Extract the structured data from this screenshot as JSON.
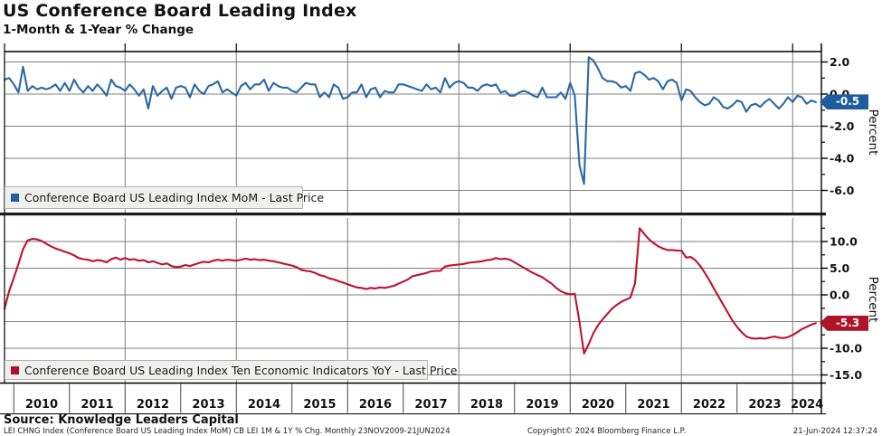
{
  "chart_data": {
    "type": "line",
    "title": "US Conference Board Leading Index",
    "subtitle": "1-Month & 1-Year % Change",
    "grid": "on",
    "legend_position": "inside-bottom-left",
    "x": {
      "frequency": "monthly",
      "start": "2009-11",
      "end": "2024-06",
      "tick_labels": [
        "2010",
        "2011",
        "2012",
        "2013",
        "2014",
        "2015",
        "2016",
        "2017",
        "2018",
        "2019",
        "2020",
        "2021",
        "2022",
        "2023",
        "2024"
      ]
    },
    "panels": [
      {
        "name": "mom",
        "legend": "Conference Board US Leading Index MoM - Last Price",
        "color": "#2A69A5",
        "swatch_color": "#1F5FA3",
        "badge_color": "#1D5C9E",
        "ylabel": "Percent",
        "y_tick_labels": [
          "2.0",
          "0.0",
          "-2.0",
          "-4.0",
          "-6.0"
        ],
        "ylim": [
          -7.1,
          2.65
        ],
        "last_price_label": "-0.5",
        "last_price": -0.5,
        "values": [
          0.9,
          1.0,
          0.6,
          0.1,
          1.7,
          0.2,
          0.5,
          0.3,
          0.4,
          0.3,
          0.4,
          0.6,
          0.2,
          0.7,
          0.2,
          0.9,
          0.4,
          0.1,
          0.5,
          0.2,
          0.6,
          0.3,
          -0.1,
          0.9,
          0.5,
          0.4,
          0.2,
          0.6,
          0.3,
          -0.1,
          0.3,
          -0.9,
          0.5,
          -0.1,
          0.2,
          0.4,
          -0.3,
          0.4,
          0.5,
          0.4,
          -0.2,
          0.6,
          0.2,
          0.0,
          0.5,
          0.6,
          0.8,
          0.1,
          0.3,
          0.1,
          -0.1,
          0.5,
          0.7,
          0.3,
          0.6,
          0.6,
          0.9,
          0.2,
          0.7,
          0.5,
          0.4,
          0.4,
          0.2,
          0.1,
          0.4,
          0.7,
          0.6,
          0.6,
          -0.2,
          0.1,
          -0.2,
          0.6,
          0.4,
          -0.3,
          -0.2,
          0.1,
          0.1,
          0.6,
          -0.2,
          0.3,
          0.4,
          -0.2,
          0.2,
          0.1,
          0.1,
          0.6,
          0.6,
          0.5,
          0.4,
          0.3,
          0.2,
          0.6,
          0.3,
          0.4,
          0.1,
          1.0,
          0.4,
          0.7,
          0.8,
          0.7,
          0.4,
          0.4,
          0.2,
          0.5,
          0.6,
          0.5,
          0.6,
          0.1,
          0.2,
          -0.1,
          -0.1,
          0.1,
          0.2,
          0.1,
          -0.1,
          -0.2,
          0.4,
          -0.2,
          -0.2,
          -0.2,
          0.1,
          -0.3,
          0.7,
          -0.1,
          -4.4,
          -5.6,
          2.3,
          2.1,
          1.6,
          1.0,
          0.8,
          0.8,
          0.7,
          0.4,
          0.5,
          0.2,
          1.3,
          1.4,
          1.2,
          0.9,
          1.0,
          0.8,
          0.3,
          0.8,
          0.9,
          0.7,
          -0.4,
          0.3,
          0.2,
          -0.2,
          -0.5,
          -0.7,
          -0.6,
          -0.2,
          -0.4,
          -0.8,
          -0.9,
          -0.7,
          -0.4,
          -0.5,
          -1.1,
          -0.7,
          -0.6,
          -0.8,
          -0.5,
          -0.3,
          -0.6,
          -0.9,
          -0.6,
          -0.2,
          -0.5,
          -0.1,
          -0.2,
          -0.6,
          -0.4,
          -0.5
        ]
      },
      {
        "name": "yoy",
        "legend": "Conference Board US Leading Index Ten Economic Indicators YoY - Last Price",
        "color": "#BE1230",
        "swatch_color": "#B00E22",
        "badge_color": "#B01226",
        "ylabel": "Percent",
        "y_tick_labels": [
          "10.0",
          "5.0",
          "0.0",
          "-5.0",
          "-10.0",
          "-15.0"
        ],
        "ylim": [
          -16.4,
          14.4
        ],
        "last_price_label": "-5.3",
        "last_price": -5.3,
        "values": [
          -2.6,
          0.7,
          3.2,
          5.8,
          8.6,
          10.2,
          10.5,
          10.4,
          10.1,
          9.6,
          9.1,
          8.7,
          8.4,
          8.1,
          7.8,
          7.4,
          6.9,
          6.7,
          6.6,
          6.3,
          6.5,
          6.4,
          6.1,
          6.7,
          7.0,
          6.6,
          6.9,
          6.6,
          6.7,
          6.4,
          6.5,
          6.1,
          6.3,
          6.0,
          5.7,
          5.9,
          5.4,
          5.2,
          5.3,
          5.6,
          5.4,
          5.7,
          6.0,
          6.2,
          6.1,
          6.4,
          6.6,
          6.4,
          6.6,
          6.5,
          6.4,
          6.6,
          6.8,
          6.6,
          6.7,
          6.5,
          6.6,
          6.4,
          6.3,
          6.1,
          5.9,
          5.7,
          5.5,
          5.2,
          4.7,
          4.5,
          4.4,
          4.1,
          3.7,
          3.5,
          3.1,
          2.9,
          2.6,
          2.3,
          2.0,
          1.7,
          1.4,
          1.3,
          1.1,
          1.3,
          1.2,
          1.4,
          1.3,
          1.5,
          1.7,
          2.1,
          2.5,
          2.9,
          3.5,
          3.7,
          3.9,
          4.1,
          4.4,
          4.5,
          4.5,
          5.3,
          5.5,
          5.6,
          5.7,
          5.8,
          6.0,
          6.1,
          6.2,
          6.3,
          6.5,
          6.6,
          6.9,
          6.7,
          6.8,
          6.6,
          6.1,
          5.6,
          5.1,
          4.6,
          4.1,
          3.7,
          3.3,
          2.7,
          2.1,
          1.3,
          0.7,
          0.3,
          0.1,
          0.2,
          -5.0,
          -11.0,
          -9.2,
          -7.2,
          -5.7,
          -4.6,
          -3.6,
          -2.6,
          -1.9,
          -1.3,
          -0.9,
          -0.5,
          2.2,
          12.5,
          11.4,
          10.4,
          9.7,
          9.1,
          8.7,
          8.4,
          8.4,
          8.3,
          8.3,
          7.0,
          7.1,
          6.5,
          5.5,
          4.2,
          2.8,
          1.2,
          -0.3,
          -1.8,
          -3.3,
          -4.8,
          -6.0,
          -7.0,
          -7.8,
          -8.1,
          -8.2,
          -8.1,
          -8.2,
          -8.0,
          -7.8,
          -8.0,
          -8.1,
          -7.9,
          -7.5,
          -7.0,
          -6.4,
          -6.0,
          -5.6,
          -5.3
        ]
      }
    ]
  },
  "footer": {
    "source": "Source: Knowledge Leaders Capital",
    "note": "LEI CHNG Index (Conference Board US Leading Index MoM) CB LEI 1M & 1Y % Chg.  Monthly 23NOV2009-21JUN2024",
    "copyright": "Copyright© 2024 Bloomberg Finance L.P.",
    "datetime": "21-Jun-2024 12:37:24"
  },
  "colors": {
    "grid": "#7f7f7f",
    "axis": "#000000",
    "separator": "#1a1a1a",
    "legend_bg": "#f0f0ee"
  }
}
